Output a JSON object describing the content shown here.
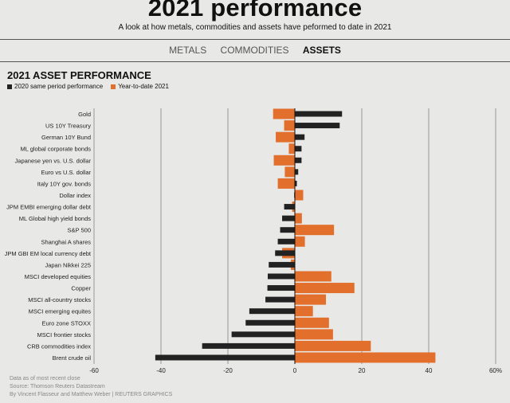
{
  "header": {
    "title": "2021 performance",
    "subtitle": "A look at how metals, commodities and assets have peformed to date in 2021"
  },
  "tabs": [
    {
      "label": "METALS",
      "active": false
    },
    {
      "label": "COMMODITIES",
      "active": false
    },
    {
      "label": "ASSETS",
      "active": true
    }
  ],
  "chart_data": {
    "type": "bar",
    "orientation": "horizontal",
    "title": "2021 ASSET PERFORMANCE",
    "xlabel": "",
    "ylabel": "",
    "xlim": [
      -60,
      60
    ],
    "xticks": [
      "-60",
      "-40",
      "-20",
      "0",
      "20",
      "40",
      "60%"
    ],
    "xtick_values": [
      -60,
      -40,
      -20,
      0,
      20,
      40,
      60
    ],
    "grid": true,
    "legend_position": "top-left",
    "categories": [
      "Gold",
      "US 10Y Treasury",
      "German 10Y Bund",
      "ML global corporate bonds",
      "Japanese yen vs. U.S. dollar",
      "Euro vs U.S. dollar",
      "Italy 10Y gov. bonds",
      "Dollar index",
      "JPM EMBI emerging dollar debt",
      "ML Global high yield bonds",
      "S&P 500",
      "Shanghai A shares",
      "JPM GBI EM local currency debt",
      "Japan Nikkei 225",
      "MSCI developed equities",
      "Copper",
      "MSCI all-country stocks",
      "MSCI emerging equites",
      "Euro zone STOXX",
      "MSCI frontier stocks",
      "CRB commodities index",
      "Brent crude oil"
    ],
    "series": [
      {
        "name": "2020 same period performance",
        "color": "#222222",
        "values": [
          14.1,
          13.4,
          2.9,
          2.0,
          2.0,
          1.0,
          0.6,
          -0.2,
          -3.2,
          -3.8,
          -4.4,
          -5.1,
          -5.9,
          -7.8,
          -8.1,
          -8.2,
          -8.8,
          -13.6,
          -14.7,
          -18.9,
          -27.7,
          -41.7
        ]
      },
      {
        "name": "Year-to-date 2021",
        "color": "#e36f2c",
        "values": [
          -6.5,
          -3.2,
          -5.7,
          -1.8,
          -6.3,
          -3.0,
          -5.1,
          2.5,
          -0.8,
          2.1,
          11.7,
          3.0,
          -3.8,
          -1.2,
          10.9,
          17.8,
          9.3,
          5.4,
          10.2,
          11.4,
          22.7,
          42.0
        ]
      }
    ]
  },
  "footnotes": [
    "Data as of most recent close",
    "Source: Thomson Reuters Datastream",
    "By Vincent Flasseur and Matthew Weber | REUTERS GRAPHICS"
  ]
}
